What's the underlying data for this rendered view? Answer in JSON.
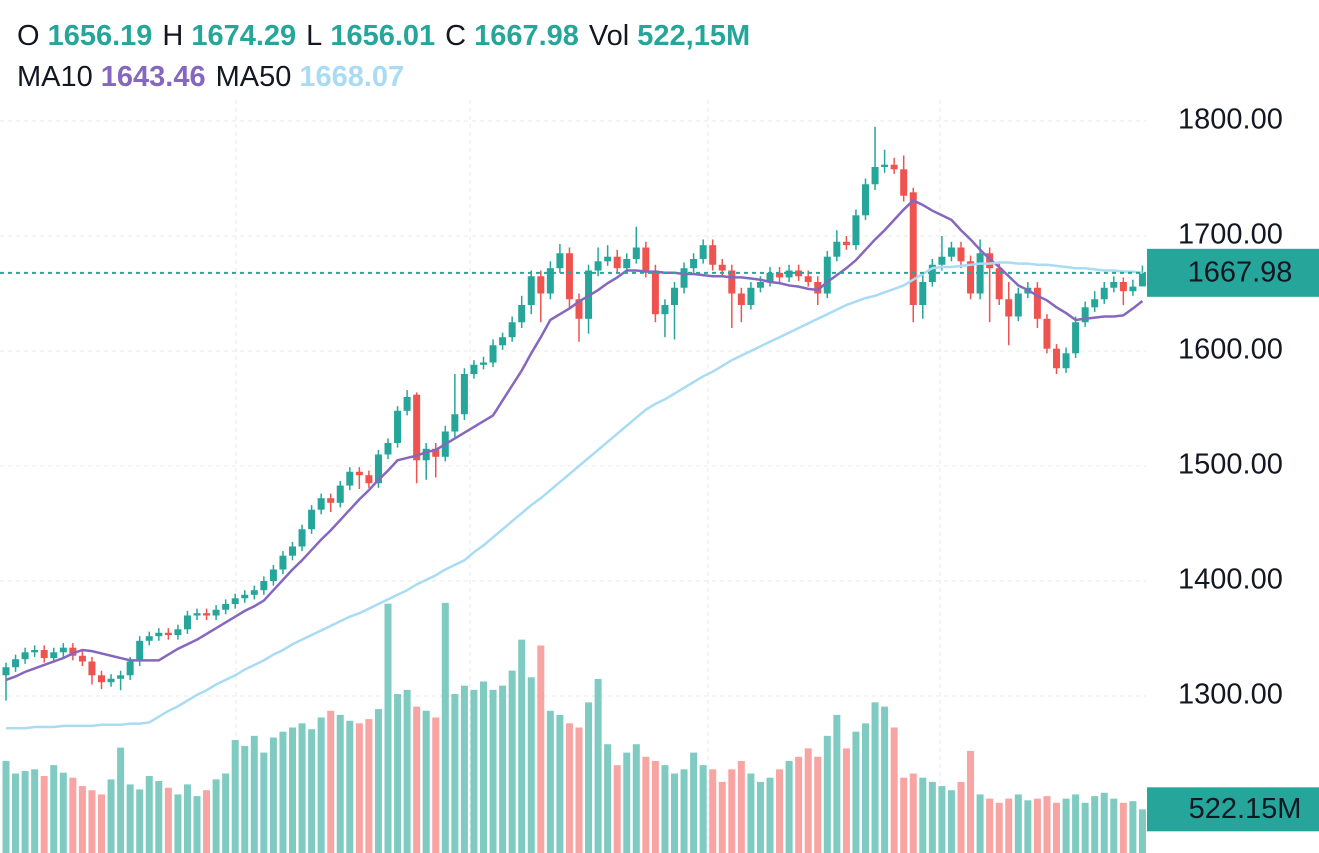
{
  "header": {
    "open_label": "O",
    "high_label": "H",
    "low_label": "L",
    "close_label": "C",
    "volume_label": "Vol",
    "volume_text": "522,15M"
  },
  "chart_data": {
    "type": "candlestick",
    "ylim": [
      1163.48,
      1818.26
    ],
    "yticks": [
      {
        "value": 1300,
        "label": "1300.00"
      },
      {
        "value": 1400,
        "label": "1400.00"
      },
      {
        "value": 1500,
        "label": "1500.00"
      },
      {
        "value": 1600,
        "label": "1600.00"
      },
      {
        "value": 1700,
        "label": "1700.00"
      },
      {
        "value": 1800,
        "label": "1800.00"
      }
    ],
    "y2lim": [
      0,
      9000
    ],
    "grid": true,
    "up_color": "#26a69a",
    "down_color": "#ef5350",
    "volume_up_color": "#7fcbc2",
    "volume_down_color": "#f7a4a2",
    "open": [
      1318,
      1325,
      1332,
      1338,
      1340,
      1333,
      1338,
      1342,
      1335,
      1330,
      1318,
      1312,
      1315,
      1318,
      1330,
      1348,
      1352,
      1355,
      1353,
      1358,
      1370,
      1372,
      1370,
      1375,
      1380,
      1385,
      1388,
      1392,
      1400,
      1410,
      1422,
      1430,
      1445,
      1462,
      1472,
      1468,
      1483,
      1495,
      1492,
      1485,
      1510,
      1520,
      1548,
      1562,
      1505,
      1515,
      1508,
      1530,
      1545,
      1580,
      1588,
      1590,
      1605,
      1612,
      1625,
      1640,
      1665,
      1650,
      1672,
      1685,
      1645,
      1628,
      1670,
      1678,
      1682,
      1672,
      1680,
      1690,
      1670,
      1632,
      1640,
      1655,
      1672,
      1680,
      1692,
      1675,
      1670,
      1650,
      1640,
      1655,
      1660,
      1668,
      1664,
      1670,
      1665,
      1660,
      1650,
      1682,
      1695,
      1692,
      1718,
      1745,
      1760,
      1762,
      1758,
      1738,
      1640,
      1660,
      1675,
      1682,
      1690,
      1678,
      1650,
      1685,
      1672,
      1645,
      1630,
      1650,
      1655,
      1628,
      1602,
      1585,
      1598,
      1625,
      1638,
      1645,
      1655,
      1660,
      1652,
      1656.19
    ],
    "high": [
      1329,
      1336,
      1342,
      1344,
      1344,
      1342,
      1346,
      1346,
      1339,
      1334,
      1322,
      1319,
      1322,
      1334,
      1352,
      1356,
      1359,
      1359,
      1362,
      1374,
      1376,
      1376,
      1379,
      1384,
      1389,
      1392,
      1396,
      1404,
      1414,
      1426,
      1434,
      1449,
      1466,
      1476,
      1476,
      1487,
      1499,
      1499,
      1496,
      1514,
      1524,
      1552,
      1566,
      1564,
      1520,
      1520,
      1535,
      1580,
      1585,
      1592,
      1595,
      1610,
      1616,
      1630,
      1648,
      1670,
      1670,
      1678,
      1693,
      1690,
      1650,
      1675,
      1690,
      1692,
      1688,
      1685,
      1708,
      1695,
      1675,
      1645,
      1660,
      1677,
      1685,
      1697,
      1697,
      1680,
      1675,
      1655,
      1660,
      1665,
      1673,
      1673,
      1675,
      1675,
      1670,
      1665,
      1687,
      1705,
      1700,
      1723,
      1750,
      1795,
      1775,
      1768,
      1770,
      1742,
      1668,
      1680,
      1700,
      1695,
      1695,
      1683,
      1697,
      1690,
      1676,
      1660,
      1655,
      1660,
      1660,
      1632,
      1606,
      1603,
      1630,
      1643,
      1652,
      1660,
      1665,
      1664,
      1662,
      1674.29
    ],
    "low": [
      1296,
      1321,
      1328,
      1334,
      1329,
      1329,
      1334,
      1331,
      1326,
      1310,
      1306,
      1308,
      1305,
      1314,
      1326,
      1344,
      1348,
      1349,
      1349,
      1354,
      1366,
      1366,
      1366,
      1371,
      1376,
      1381,
      1384,
      1388,
      1396,
      1406,
      1418,
      1426,
      1441,
      1458,
      1460,
      1464,
      1479,
      1480,
      1481,
      1481,
      1506,
      1516,
      1544,
      1485,
      1488,
      1490,
      1504,
      1525,
      1540,
      1576,
      1584,
      1586,
      1601,
      1608,
      1620,
      1632,
      1625,
      1645,
      1668,
      1638,
      1608,
      1615,
      1665,
      1674,
      1668,
      1668,
      1676,
      1664,
      1625,
      1612,
      1610,
      1650,
      1668,
      1676,
      1670,
      1664,
      1620,
      1625,
      1636,
      1651,
      1656,
      1660,
      1660,
      1661,
      1656,
      1640,
      1646,
      1678,
      1688,
      1688,
      1714,
      1740,
      1755,
      1754,
      1730,
      1625,
      1628,
      1656,
      1670,
      1678,
      1672,
      1645,
      1645,
      1625,
      1640,
      1605,
      1626,
      1646,
      1620,
      1598,
      1580,
      1581,
      1594,
      1621,
      1634,
      1641,
      1651,
      1640,
      1648,
      1656.01
    ],
    "close": [
      1325,
      1332,
      1338,
      1340,
      1333,
      1338,
      1342,
      1335,
      1330,
      1318,
      1312,
      1315,
      1318,
      1330,
      1348,
      1352,
      1355,
      1353,
      1358,
      1370,
      1372,
      1370,
      1375,
      1380,
      1385,
      1388,
      1392,
      1400,
      1410,
      1422,
      1430,
      1445,
      1462,
      1472,
      1468,
      1483,
      1495,
      1492,
      1485,
      1510,
      1520,
      1548,
      1560,
      1505,
      1515,
      1508,
      1530,
      1545,
      1580,
      1588,
      1590,
      1605,
      1612,
      1625,
      1640,
      1665,
      1650,
      1672,
      1685,
      1645,
      1628,
      1670,
      1678,
      1682,
      1672,
      1680,
      1690,
      1670,
      1632,
      1640,
      1655,
      1672,
      1680,
      1692,
      1675,
      1670,
      1650,
      1640,
      1655,
      1660,
      1668,
      1664,
      1670,
      1665,
      1660,
      1650,
      1682,
      1695,
      1692,
      1718,
      1745,
      1760,
      1762,
      1758,
      1735,
      1640,
      1660,
      1675,
      1682,
      1690,
      1678,
      1650,
      1685,
      1672,
      1645,
      1630,
      1650,
      1655,
      1628,
      1602,
      1585,
      1598,
      1625,
      1638,
      1645,
      1655,
      1660,
      1652,
      1656,
      1667.98
    ],
    "volume": [
      1100,
      950,
      980,
      1000,
      920,
      1050,
      960,
      900,
      800,
      750,
      700,
      880,
      1260,
      820,
      760,
      920,
      860,
      780,
      700,
      820,
      680,
      750,
      880,
      950,
      1350,
      1280,
      1400,
      1200,
      1380,
      1450,
      1500,
      1550,
      1480,
      1620,
      1700,
      1650,
      1580,
      1550,
      1600,
      1720,
      2980,
      1900,
      1950,
      1750,
      1700,
      1620,
      2990,
      1900,
      2000,
      1950,
      2050,
      1950,
      2000,
      2180,
      2550,
      2100,
      2480,
      1700,
      1650,
      1550,
      1500,
      1800,
      2080,
      1300,
      1050,
      1200,
      1300,
      1150,
      1100,
      1050,
      950,
      1000,
      1200,
      1050,
      1000,
      850,
      1000,
      1100,
      950,
      850,
      900,
      1000,
      1100,
      1150,
      1250,
      1150,
      1400,
      1650,
      1250,
      1450,
      1550,
      1800,
      1750,
      1500,
      900,
      950,
      900,
      850,
      800,
      750,
      850,
      1220,
      700,
      650,
      600,
      650,
      700,
      630,
      650,
      680,
      600,
      650,
      700,
      600,
      680,
      720,
      650,
      600,
      620,
      522.15
    ],
    "volume_last_label": "522.15M",
    "series": [
      {
        "name": "MA10",
        "color": "#8667bf",
        "values": [
          1314,
          1317,
          1321,
          1324,
          1327,
          1330,
          1333,
          1337,
          1340,
          1339,
          1337,
          1335,
          1333,
          1331,
          1331,
          1331,
          1331,
          1336,
          1341,
          1345,
          1349,
          1354,
          1359,
          1364,
          1369,
          1374,
          1378,
          1383,
          1392,
          1401,
          1410,
          1418,
          1427,
          1436,
          1444,
          1453,
          1462,
          1471,
          1479,
          1488,
          1496,
          1505,
          1507,
          1509,
          1512,
          1514,
          1519,
          1524,
          1529,
          1534,
          1539,
          1544,
          1557,
          1570,
          1583,
          1598,
          1612,
          1627,
          1632,
          1637,
          1643,
          1648,
          1653,
          1659,
          1664,
          1670,
          1670,
          1669,
          1669,
          1668,
          1668,
          1667,
          1667,
          1666,
          1665,
          1665,
          1664,
          1664,
          1663,
          1662,
          1660,
          1659,
          1657,
          1656,
          1654,
          1653,
          1660,
          1666,
          1672,
          1679,
          1688,
          1697,
          1705,
          1714,
          1723,
          1731,
          1727,
          1722,
          1718,
          1714,
          1705,
          1697,
          1688,
          1680,
          1673,
          1665,
          1657,
          1653,
          1648,
          1644,
          1638,
          1633,
          1627,
          1628,
          1629,
          1630,
          1630,
          1631,
          1637,
          1643.46
        ]
      },
      {
        "name": "MA50",
        "color": "#a9dcf4",
        "values": [
          1272,
          1272,
          1272,
          1273,
          1273,
          1273,
          1274,
          1274,
          1274,
          1274,
          1275,
          1275,
          1275,
          1276,
          1276,
          1277,
          1282,
          1287,
          1291,
          1296,
          1301,
          1305,
          1310,
          1314,
          1318,
          1323,
          1327,
          1331,
          1336,
          1340,
          1345,
          1349,
          1353,
          1357,
          1361,
          1365,
          1369,
          1372,
          1376,
          1380,
          1384,
          1388,
          1392,
          1397,
          1401,
          1405,
          1410,
          1414,
          1418,
          1425,
          1431,
          1438,
          1445,
          1452,
          1459,
          1466,
          1472,
          1479,
          1486,
          1493,
          1500,
          1507,
          1514,
          1521,
          1528,
          1535,
          1542,
          1549,
          1554,
          1558,
          1563,
          1568,
          1573,
          1578,
          1582,
          1587,
          1592,
          1596,
          1600,
          1604,
          1608,
          1612,
          1616,
          1620,
          1624,
          1628,
          1632,
          1636,
          1640,
          1643,
          1646,
          1648,
          1651,
          1654,
          1657,
          1662,
          1667,
          1672,
          1673,
          1673,
          1674,
          1675,
          1676,
          1676,
          1677,
          1677,
          1676,
          1676,
          1675,
          1675,
          1674,
          1673,
          1672,
          1672,
          1671,
          1670,
          1670,
          1669,
          1669,
          1668.07
        ]
      }
    ]
  }
}
